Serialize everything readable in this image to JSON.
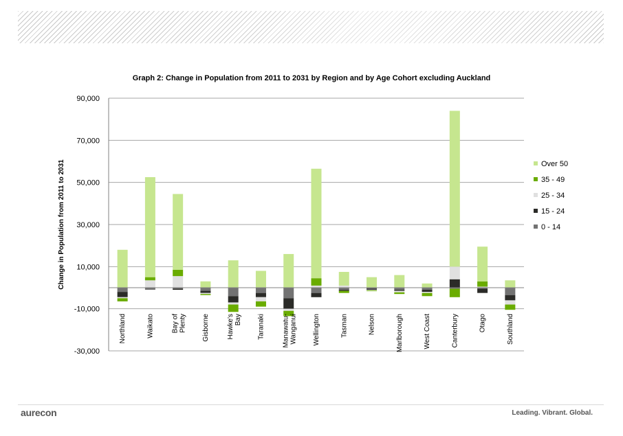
{
  "footer": {
    "logo": "aurecon",
    "tagline": "Leading. Vibrant. Global."
  },
  "colors": {
    "Over 50": "#c6e68f",
    "35 - 49": "#6aac00",
    "25 - 34": "#e0e0e0",
    "15 - 24": "#2b2b28",
    "0 - 14": "#737373",
    "grid": "#a6a6a6"
  },
  "chart_data": {
    "type": "bar",
    "stacked": true,
    "title": "Graph 2: Change in Population from 2011 to 2031 by Region and by Age Cohort excluding Auckland",
    "xlabel": "",
    "ylabel": "Change in Population from 2011 to 2031",
    "ylim": [
      -30000,
      90000
    ],
    "yticks": [
      -30000,
      -10000,
      10000,
      30000,
      50000,
      70000,
      90000
    ],
    "ytick_labels": [
      "-30,000",
      "-10,000",
      "10,000",
      "30,000",
      "50,000",
      "70,000",
      "90,000"
    ],
    "grid": true,
    "legend_position": "right",
    "legend": [
      "Over 50",
      "35 - 49",
      "25 - 34",
      "15 - 24",
      "0 - 14"
    ],
    "categories": [
      "Northland",
      "Waikato",
      "Bay of Plenty",
      "Gisborne",
      "Hawke's Bay",
      "Taranaki",
      "Manawatu-Wanganui",
      "Wellington",
      "Tasman",
      "Nelson",
      "Marlborough",
      "West Coast",
      "Canterbury",
      "Otago",
      "Southland"
    ],
    "category_labels": [
      [
        "Northland"
      ],
      [
        "Waikato"
      ],
      [
        "Bay of",
        "Plenty"
      ],
      [
        "Gisborne"
      ],
      [
        "Hawke's",
        "Bay"
      ],
      [
        "Taranaki"
      ],
      [
        "Manawatu-",
        "Wanganui"
      ],
      [
        "Wellington"
      ],
      [
        "Tasman"
      ],
      [
        "Nelson"
      ],
      [
        "Marlborough"
      ],
      [
        "West Coast"
      ],
      [
        "Canterbury"
      ],
      [
        "Otago"
      ],
      [
        "Southland"
      ]
    ],
    "series": [
      {
        "name": "0 - 14",
        "values": [
          -2000,
          -1000,
          -500,
          -1500,
          -4000,
          -2500,
          -5000,
          -2500,
          -1000,
          -500,
          -1000,
          -1000,
          -500,
          -500,
          -3500
        ]
      },
      {
        "name": "15 - 24",
        "values": [
          -2500,
          0,
          -500,
          -1000,
          -3000,
          -2000,
          -5000,
          -2000,
          -500,
          -500,
          -500,
          -1000,
          4000,
          -2000,
          -2500
        ]
      },
      {
        "name": "25 - 34",
        "values": [
          -500,
          3500,
          5500,
          -500,
          -1000,
          -2000,
          -1000,
          1000,
          1000,
          -300,
          -700,
          -500,
          6000,
          500,
          -2000
        ]
      },
      {
        "name": "35 - 49",
        "values": [
          -1500,
          1500,
          3000,
          -500,
          -3500,
          -2500,
          -2500,
          3500,
          -1000,
          -300,
          -800,
          -1500,
          -4000,
          2500,
          -2500
        ]
      },
      {
        "name": "Over 50",
        "values": [
          18000,
          47500,
          36000,
          3000,
          13000,
          8000,
          16000,
          52000,
          6500,
          5000,
          6000,
          2000,
          74000,
          16500,
          3500
        ]
      }
    ]
  }
}
